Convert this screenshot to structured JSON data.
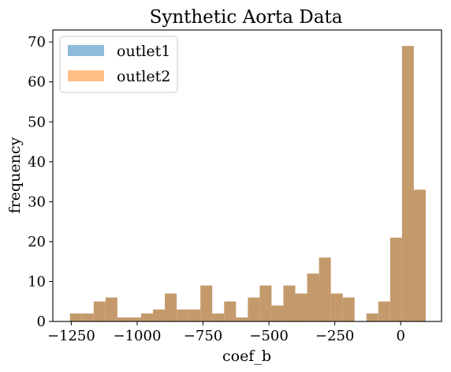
{
  "chart_data": {
    "type": "bar",
    "title": "Synthetic Aorta Data",
    "xlabel": "coef_b",
    "ylabel": "frequency",
    "xlim": [
      -1320,
      155
    ],
    "ylim": [
      0,
      73
    ],
    "x_ticks": [
      -1250,
      -1000,
      -750,
      -500,
      -250,
      0
    ],
    "x_tick_labels": [
      "−1250",
      "−1000",
      "−750",
      "−500",
      "−250",
      "0"
    ],
    "y_ticks": [
      0,
      10,
      20,
      30,
      40,
      50,
      60,
      70
    ],
    "y_tick_labels": [
      "0",
      "10",
      "20",
      "30",
      "40",
      "50",
      "60",
      "70"
    ],
    "grid": false,
    "legend_position": "top-left",
    "bin_edges": [
      -1255,
      -1210,
      -1165,
      -1120,
      -1075,
      -1030,
      -985,
      -940,
      -895,
      -850,
      -805,
      -760,
      -715,
      -670,
      -625,
      -580,
      -535,
      -490,
      -445,
      -400,
      -355,
      -310,
      -265,
      -220,
      -175,
      -130,
      -85,
      -40,
      5,
      50,
      95
    ],
    "counts": [
      2,
      2,
      5,
      6,
      1,
      1,
      2,
      3,
      7,
      3,
      3,
      9,
      2,
      5,
      1,
      6,
      9,
      4,
      9,
      7,
      12,
      16,
      7,
      6,
      0,
      2,
      5,
      21,
      69,
      33
    ],
    "series": [
      {
        "name": "outlet1",
        "color": "#1f77b4",
        "alpha": 0.5
      },
      {
        "name": "outlet2",
        "color": "#ff7f0e",
        "alpha": 0.5
      }
    ],
    "overlap_color": "#c49a6c"
  }
}
